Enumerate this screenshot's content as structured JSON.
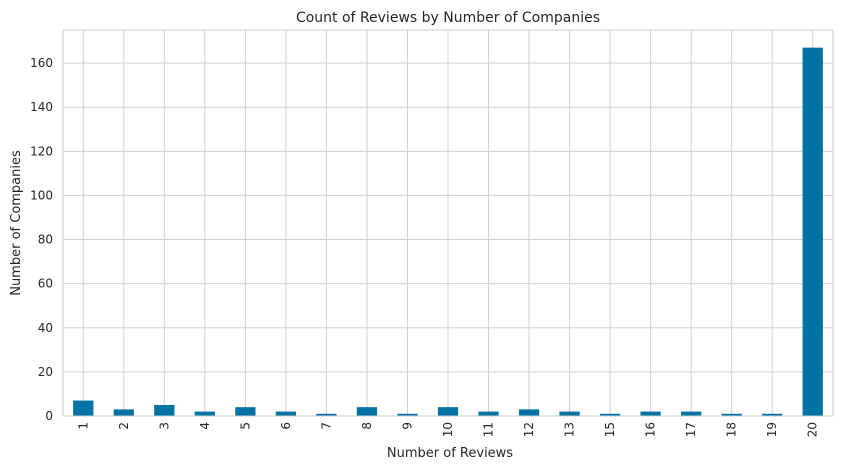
{
  "chart_data": {
    "type": "bar",
    "title": "Count of Reviews by Number of Companies",
    "xlabel": "Number of Reviews",
    "ylabel": "Number of Companies",
    "categories": [
      "1",
      "2",
      "3",
      "4",
      "5",
      "6",
      "7",
      "8",
      "9",
      "10",
      "11",
      "12",
      "13",
      "15",
      "16",
      "17",
      "18",
      "19",
      "20"
    ],
    "values": [
      7,
      3,
      5,
      2,
      4,
      2,
      1,
      4,
      1,
      4,
      2,
      3,
      2,
      1,
      2,
      2,
      1,
      1,
      167
    ],
    "ylim": [
      0,
      175
    ],
    "yticks": [
      0,
      20,
      40,
      60,
      80,
      100,
      120,
      140,
      160
    ],
    "grid": true,
    "legend": "none",
    "bar_color": "#0072a3",
    "grid_color": "#d0d0d0",
    "frame_color": "#cccccc",
    "background": "#ffffff"
  }
}
